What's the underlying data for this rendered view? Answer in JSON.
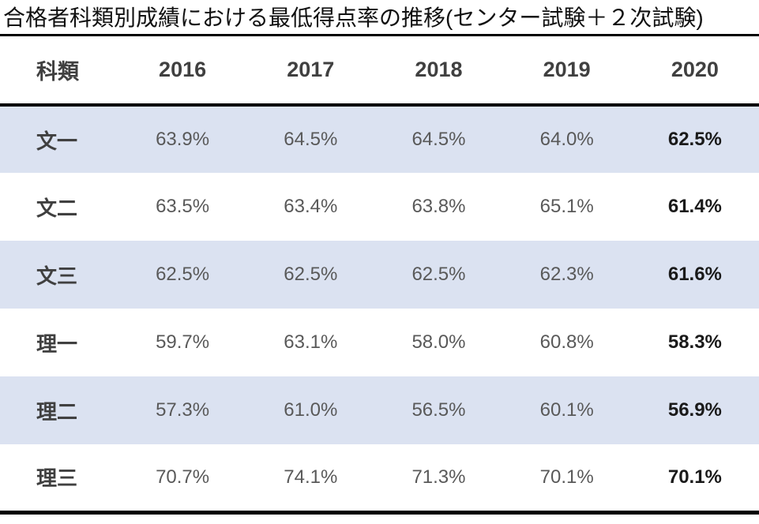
{
  "title": "合格者科類別成績における最低得点率の推移(センター試験＋２次試験)",
  "colors": {
    "band_row": "#dbe2f1",
    "rule_line": "#000000",
    "header_text": "#404040",
    "value_text": "#595959",
    "final_value_text": "#1a1a1a"
  },
  "chart_data": {
    "type": "table",
    "title": "合格者科類別成績における最低得点率の推移(センター試験＋２次試験)",
    "columns": [
      "科類",
      "2016",
      "2017",
      "2018",
      "2019",
      "2020"
    ],
    "rows": [
      [
        "文一",
        "63.9%",
        "64.5%",
        "64.5%",
        "64.0%",
        "62.5%"
      ],
      [
        "文二",
        "63.5%",
        "63.4%",
        "63.8%",
        "65.1%",
        "61.4%"
      ],
      [
        "文三",
        "62.5%",
        "62.5%",
        "62.5%",
        "62.3%",
        "61.6%"
      ],
      [
        "理一",
        "59.7%",
        "63.1%",
        "58.0%",
        "60.8%",
        "58.3%"
      ],
      [
        "理二",
        "57.3%",
        "61.0%",
        "56.5%",
        "60.1%",
        "56.9%"
      ],
      [
        "理三",
        "70.7%",
        "74.1%",
        "71.3%",
        "70.1%",
        "70.1%"
      ]
    ],
    "layout_hints": {
      "banded_rows": true,
      "band_rows_indices": [
        0,
        2,
        4
      ],
      "final_column_bold": true,
      "grid": false
    }
  }
}
